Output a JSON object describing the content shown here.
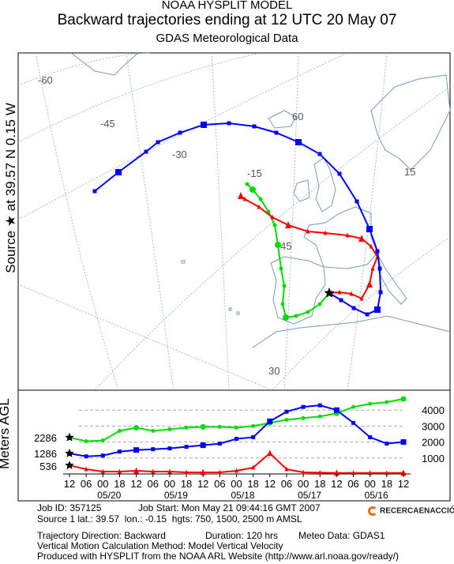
{
  "header": {
    "line1": "NOAA HYSPLIT MODEL",
    "line2": "Backward trajectories ending at 12 UTC 20 May 07",
    "line3": "GDAS Meteorological Data"
  },
  "side_label": "Source ★ at 39.57 N 0.15 W",
  "vertical_axis_label": "Meters AGL",
  "map": {
    "graticule_labels": [
      "-60",
      "-45",
      "-30",
      "-15",
      "60",
      "45",
      "30",
      "15"
    ],
    "colors": {
      "low": "#ff0000",
      "mid": "#0000ff",
      "high": "#00dd00",
      "coast": "#7a9ab5",
      "grid": "#9cc0dd"
    }
  },
  "chart_data": {
    "type": "line",
    "title": "Backward trajectories ending at 12 UTC 20 May 07",
    "ylabel": "Meters AGL",
    "yticks": [
      1000,
      2000,
      3000,
      4000
    ],
    "ylim": [
      0,
      5000
    ],
    "x_tick_labels": [
      "12",
      "06",
      "00",
      "18",
      "12",
      "06",
      "00",
      "18",
      "12",
      "06",
      "00",
      "18",
      "12",
      "06",
      "00",
      "18",
      "12",
      "06",
      "00",
      "18",
      "12"
    ],
    "x_date_labels": [
      "05/20",
      "05/19",
      "05/18",
      "05/17",
      "05/16"
    ],
    "x_hours_back": [
      0,
      6,
      12,
      18,
      24,
      30,
      36,
      42,
      48,
      54,
      60,
      66,
      72,
      78,
      84,
      90,
      96,
      102,
      108,
      114,
      120
    ],
    "start_height_labels": [
      "2286",
      "1286",
      "536"
    ],
    "series": [
      {
        "name": "2500 m AMSL",
        "color": "#00dd00",
        "values": [
          2286,
          2050,
          2100,
          2700,
          2900,
          2700,
          2800,
          2900,
          2950,
          2950,
          2900,
          3000,
          3200,
          3400,
          3500,
          3600,
          3800,
          4200,
          4400,
          4500,
          4700
        ]
      },
      {
        "name": "1500 m AMSL",
        "color": "#0000ff",
        "values": [
          1286,
          1100,
          1150,
          1400,
          1500,
          1550,
          1600,
          1700,
          1800,
          1900,
          2200,
          2300,
          3300,
          3900,
          4200,
          4300,
          4000,
          3200,
          2300,
          1900,
          2000
        ]
      },
      {
        "name": "750 m AMSL",
        "color": "#ff0000",
        "values": [
          536,
          300,
          150,
          150,
          200,
          150,
          150,
          100,
          100,
          100,
          200,
          400,
          1300,
          300,
          100,
          80,
          60,
          60,
          60,
          60,
          60
        ]
      }
    ]
  },
  "footer": {
    "job_id": "Job ID: 357125",
    "job_start": "Job Start: Mon May 21 09:44:16 GMT 2007",
    "source": "Source 1 lat.: 39.57  lon.: -0.15  hgts: 750, 1500, 2500 m AMSL",
    "direction": "Trajectory Direction: Backward",
    "duration": "Duration: 120 hrs",
    "meteo": "Meteo Data: GDAS1",
    "vertical": "Vertical Motion Calculation Method: Model Vertical Velocity",
    "produced": "Produced with HYSPLIT from the NOAA ARL Website (http://www.arl.noaa.gov/ready/)"
  },
  "logo_text": "RECERCAENACCIÓ"
}
